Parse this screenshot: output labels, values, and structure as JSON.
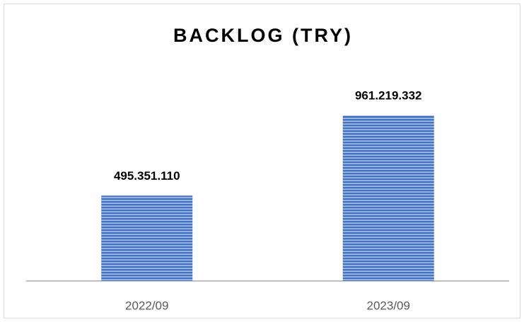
{
  "chart_data": {
    "type": "bar",
    "title": "BACKLOG (TRY)",
    "categories": [
      "2022/09",
      "2023/09"
    ],
    "values": [
      495351110,
      961219332
    ],
    "value_labels": [
      "495.351.110",
      "961.219.332"
    ],
    "color": "#4472c4"
  }
}
